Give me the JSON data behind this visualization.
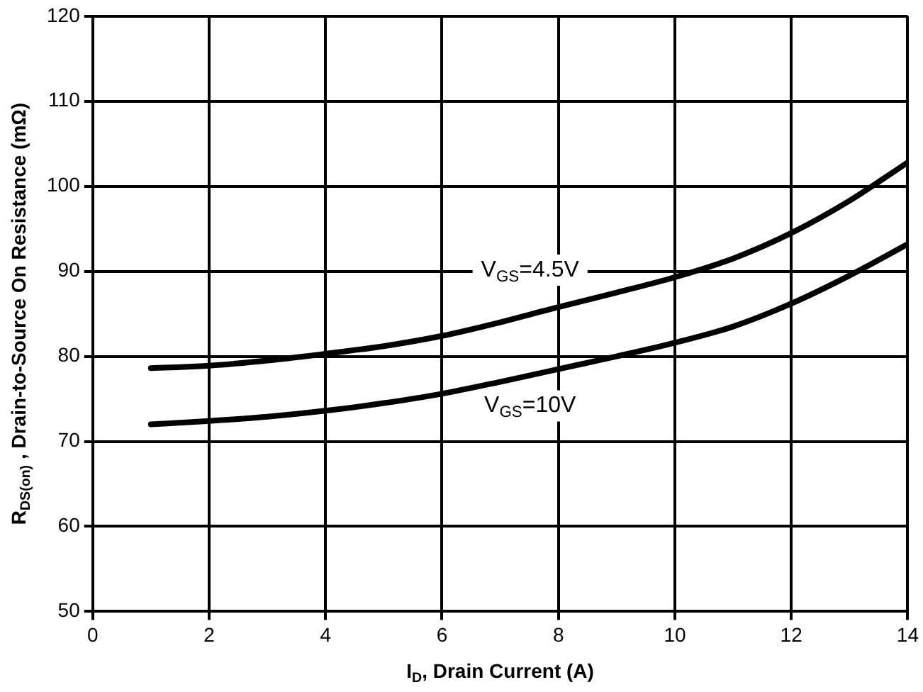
{
  "chart_data": {
    "type": "line",
    "xlabel": "I$_{D}$, Drain Current (A)",
    "ylabel": "R$_{DS(on)}$ , Drain-to-Source On Resistance (mΩ)",
    "x": [
      1,
      2,
      3,
      4,
      5,
      6,
      7,
      8,
      9,
      10,
      11,
      12,
      13,
      14
    ],
    "series": [
      {
        "name": "V$_{GS}$=4.5V",
        "color": "#000000",
        "values": [
          78.6,
          78.9,
          79.5,
          80.3,
          81.2,
          82.4,
          84.0,
          85.8,
          87.5,
          89.3,
          91.5,
          94.5,
          98.3,
          102.8
        ]
      },
      {
        "name": "V$_{GS}$=10V",
        "color": "#000000",
        "values": [
          72.0,
          72.4,
          72.9,
          73.6,
          74.5,
          75.6,
          77.0,
          78.5,
          80.0,
          81.6,
          83.5,
          86.2,
          89.5,
          93.2
        ]
      }
    ],
    "xlim": [
      0,
      14
    ],
    "xticks": [
      0,
      2,
      4,
      6,
      8,
      10,
      12,
      14
    ],
    "ylim": [
      50,
      120
    ],
    "yticks": [
      50,
      60,
      70,
      80,
      90,
      100,
      110,
      120
    ],
    "grid": true,
    "legend": false,
    "marker": "none",
    "line_style": "solid"
  }
}
